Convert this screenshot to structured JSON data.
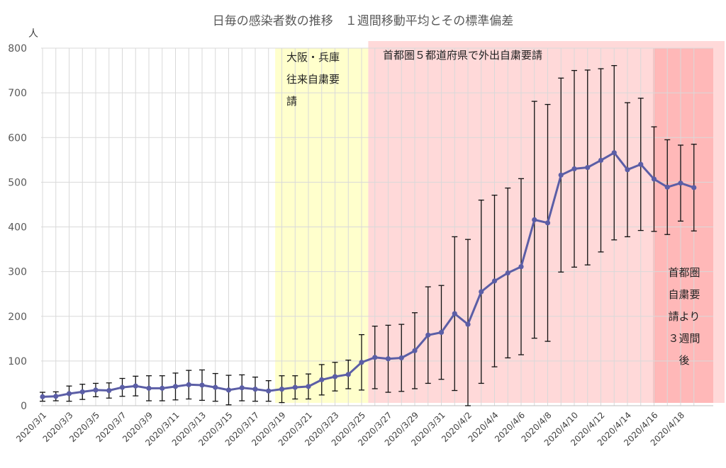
{
  "chart_data": {
    "type": "line",
    "title": "日毎の感染者数の推移　１週間移動平均とその標準偏差",
    "ylabel": "人",
    "xlabel": "",
    "ylim": [
      0,
      800
    ],
    "yticks": [
      0,
      100,
      200,
      300,
      400,
      500,
      600,
      700,
      800
    ],
    "grid": true,
    "legend": "none",
    "x": [
      "2020/3/1",
      "2020/3/2",
      "2020/3/3",
      "2020/3/4",
      "2020/3/5",
      "2020/3/6",
      "2020/3/7",
      "2020/3/8",
      "2020/3/9",
      "2020/3/10",
      "2020/3/11",
      "2020/3/12",
      "2020/3/13",
      "2020/3/14",
      "2020/3/15",
      "2020/3/16",
      "2020/3/17",
      "2020/3/18",
      "2020/3/19",
      "2020/3/20",
      "2020/3/21",
      "2020/3/22",
      "2020/3/23",
      "2020/3/24",
      "2020/3/25",
      "2020/3/26",
      "2020/3/27",
      "2020/3/28",
      "2020/3/29",
      "2020/3/30",
      "2020/3/31",
      "2020/4/1",
      "2020/4/2",
      "2020/4/3",
      "2020/4/4",
      "2020/4/5",
      "2020/4/6",
      "2020/4/7",
      "2020/4/8",
      "2020/4/9",
      "2020/4/10",
      "2020/4/11",
      "2020/4/12",
      "2020/4/13",
      "2020/4/14",
      "2020/4/15",
      "2020/4/16",
      "2020/4/17",
      "2020/4/18",
      "2020/4/19"
    ],
    "xtick_labels": [
      "2020/3/1",
      "2020/3/3",
      "2020/3/5",
      "2020/3/7",
      "2020/3/9",
      "2020/3/11",
      "2020/3/13",
      "2020/3/15",
      "2020/3/17",
      "2020/3/19",
      "2020/3/21",
      "2020/3/23",
      "2020/3/25",
      "2020/3/27",
      "2020/3/29",
      "2020/3/31",
      "2020/4/2",
      "2020/4/4",
      "2020/4/6",
      "2020/4/8",
      "2020/4/10",
      "2020/4/12",
      "2020/4/14",
      "2020/4/16",
      "2020/4/18"
    ],
    "series": [
      {
        "color": "#5b5ea6",
        "values": [
          20,
          21,
          27,
          31,
          35,
          34,
          41,
          44,
          39,
          39,
          43,
          47,
          46,
          41,
          35,
          40,
          37,
          33,
          37,
          41,
          43,
          58,
          65,
          70,
          97,
          108,
          105,
          107,
          123,
          158,
          164,
          206,
          182,
          255,
          279,
          297,
          311,
          416,
          409,
          516,
          530,
          533,
          549,
          566,
          528,
          540,
          507,
          489,
          498,
          488
        ],
        "error": [
          10,
          10,
          17,
          17,
          15,
          17,
          20,
          22,
          28,
          28,
          30,
          32,
          34,
          31,
          33,
          29,
          27,
          23,
          30,
          26,
          28,
          34,
          32,
          32,
          62,
          70,
          75,
          75,
          85,
          108,
          105,
          172,
          190,
          205,
          192,
          190,
          197,
          265,
          265,
          217,
          220,
          218,
          205,
          195,
          150,
          148,
          117,
          106,
          85,
          97
        ]
      }
    ],
    "annotations": [
      {
        "lines": [
          "大阪・兵庫",
          "往来自粛要",
          "請"
        ],
        "color": "#ffffcc",
        "from": "2020/3/19",
        "to": "2020/3/26"
      },
      {
        "lines": [
          "首都圏５都道府県で外出自粛要請"
        ],
        "color": "#ffd9d9",
        "from": "2020/3/26",
        "to": "2020/4/16"
      },
      {
        "lines": [
          "首都圏",
          "自粛要",
          "請より",
          "３週間",
          "後"
        ],
        "color": "#ffb8b8",
        "from": "2020/4/16",
        "to": "2020/4/20"
      }
    ]
  }
}
